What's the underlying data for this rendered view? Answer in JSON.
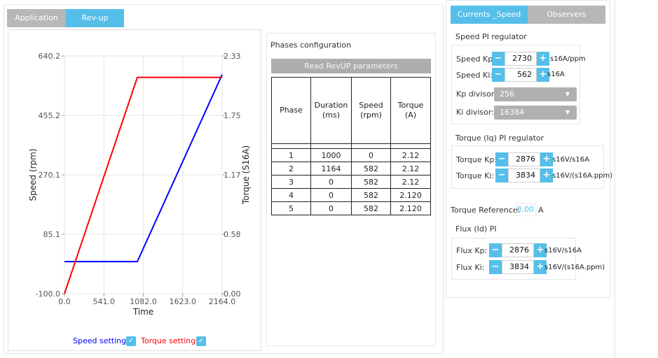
{
  "tabs": {
    "application": "Application",
    "revup": "Rev-up"
  },
  "chart": {
    "left_ticks": [
      "640.2",
      "455.2",
      "270.1",
      "85.1",
      "-100.0"
    ],
    "right_ticks": [
      "2.33",
      "1.75",
      "1.17",
      "0.58",
      "0.00"
    ],
    "x_ticks": [
      "0.0",
      "541.0",
      "1082.0",
      "1623.0",
      "2164.0"
    ],
    "ylabel_left": "Speed (rpm)",
    "ylabel_right": "Torque (S16A)",
    "xlabel": "Time",
    "legend": {
      "speed": "Speed settings",
      "torque": "Torque settings"
    },
    "colors": {
      "speed": "#0000ff",
      "torque": "#ff0000"
    }
  },
  "chart_data": {
    "type": "line",
    "xlabel": "Time",
    "ylabel": "Speed (rpm)",
    "y2label": "Torque (S16A)",
    "xlim": [
      0.0,
      2164.0
    ],
    "ylim": [
      -100.0,
      640.2
    ],
    "y2lim": [
      0.0,
      2.33
    ],
    "series": [
      {
        "name": "Speed settings",
        "axis": "left",
        "x": [
          0,
          1000,
          2164
        ],
        "y": [
          0,
          0,
          582
        ]
      },
      {
        "name": "Torque settings",
        "axis": "right",
        "x": [
          0,
          1000,
          2164
        ],
        "y": [
          0,
          2.12,
          2.12
        ]
      }
    ],
    "grid": true
  },
  "phases": {
    "title": "Phases configuration",
    "read_button": "Read RevUP parameters",
    "headers": [
      "Phase",
      "Duration\n(ms)",
      "Speed\n(rpm)",
      "Torque\n(A)"
    ],
    "rows": [
      [
        "1",
        "1000",
        "0",
        "2.12"
      ],
      [
        "2",
        "1164",
        "582",
        "2.12"
      ],
      [
        "3",
        "0",
        "582",
        "2.12"
      ],
      [
        "4",
        "0",
        "582",
        "2.120"
      ],
      [
        "5",
        "0",
        "582",
        "2.120"
      ]
    ]
  },
  "right": {
    "tabs": {
      "currents": "Currents _Speed",
      "observers": "Observers"
    },
    "speed_pi": {
      "title": "Speed PI regulator",
      "kp_label": "Speed Kp:",
      "kp_value": "2730",
      "kp_unit": "s16A/ppm",
      "ki_label": "Speed Ki:",
      "ki_value": "562",
      "ki_unit": "s16A",
      "kp_div_label": "Kp divisor:",
      "kp_div_value": "256",
      "ki_div_label": "Ki divisor:",
      "ki_div_value": "16384"
    },
    "torque_pi": {
      "title": "Torque (Iq) PI regulator",
      "kp_label": "Torque Kp:",
      "kp_value": "2876",
      "kp_unit": "s16V/s16A",
      "ki_label": "Torque Ki:",
      "ki_value": "3834",
      "ki_unit": "s16V/(s16A.ppm)"
    },
    "torque_ref": {
      "label": "Torque Reference:",
      "value": "0.00",
      "unit": "A"
    },
    "flux_pi": {
      "title": "Flux (Id) PI",
      "kp_label": "Flux Kp:",
      "kp_value": "2876",
      "kp_unit": "s16V/s16A",
      "ki_label": "Flux Ki:",
      "ki_value": "3834",
      "ki_unit": "s16V/(s16A.ppm)"
    },
    "spin_minus": "−",
    "spin_plus": "+"
  }
}
